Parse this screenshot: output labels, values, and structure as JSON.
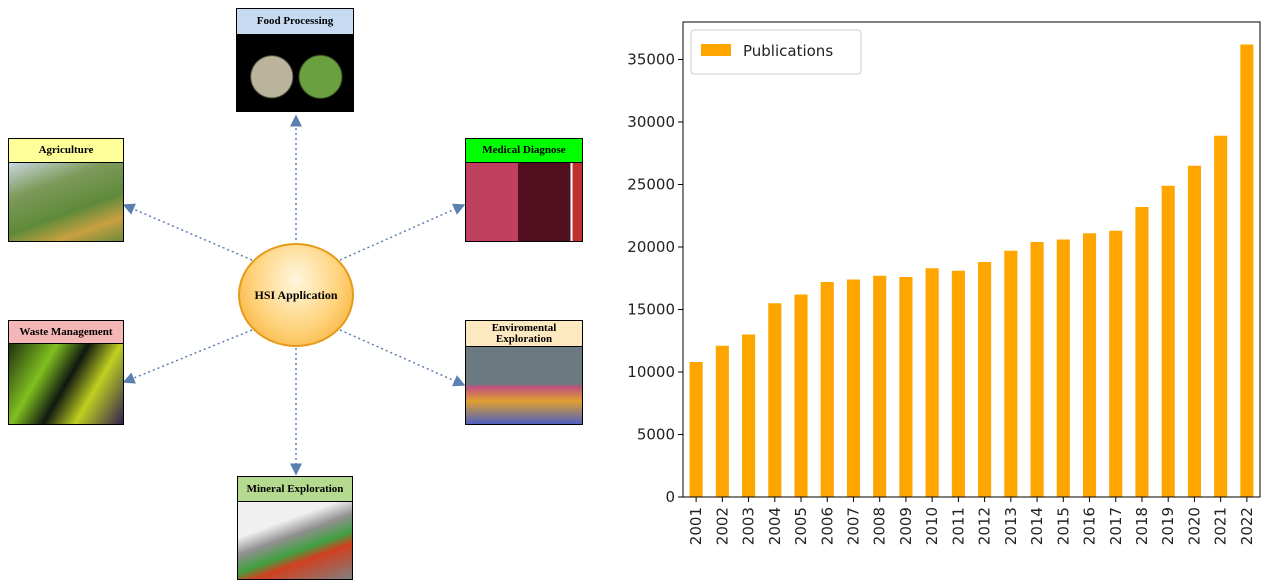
{
  "diagram": {
    "center": "HSI Application",
    "nodes": [
      {
        "label": "Food Processing"
      },
      {
        "label": "Agriculture"
      },
      {
        "label": "Medical Diagnose"
      },
      {
        "label": "Waste Management"
      },
      {
        "label": "Enviromental Exploration"
      },
      {
        "label": "Mineral Exploration"
      }
    ]
  },
  "chart_data": {
    "type": "bar",
    "categories": [
      "2001",
      "2002",
      "2003",
      "2004",
      "2005",
      "2006",
      "2007",
      "2008",
      "2009",
      "2010",
      "2011",
      "2012",
      "2013",
      "2014",
      "2015",
      "2016",
      "2017",
      "2018",
      "2019",
      "2020",
      "2021",
      "2022"
    ],
    "series": [
      {
        "name": "Publications",
        "color": "#ffa500",
        "values": [
          10800,
          12100,
          13000,
          15500,
          16200,
          17200,
          17400,
          17700,
          17600,
          18300,
          18100,
          18800,
          19700,
          20400,
          20600,
          21100,
          21300,
          23200,
          24900,
          26500,
          28900,
          36200
        ]
      }
    ],
    "ylim": [
      0,
      38000
    ],
    "yticks": [
      0,
      5000,
      10000,
      15000,
      20000,
      25000,
      30000,
      35000
    ],
    "legend": "upper-left"
  }
}
